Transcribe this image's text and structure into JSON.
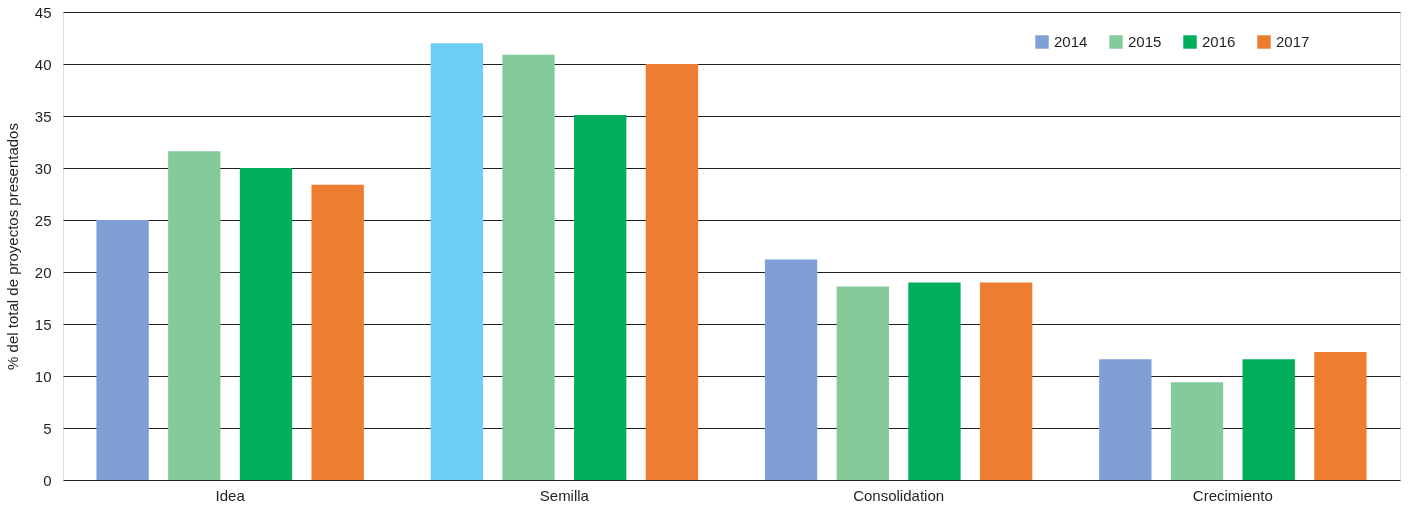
{
  "chart_data": {
    "type": "bar",
    "ylabel": "% del total de proyectos presentados",
    "categories": [
      "Idea",
      "Semilla",
      "Consolidation",
      "Crecimiento"
    ],
    "series": [
      {
        "name": "2014",
        "color": "#7f9fd5",
        "colors": [
          "#7f9fd5",
          "#6dcff6",
          "#7f9fd5",
          "#7f9fd5"
        ],
        "values": [
          25,
          42,
          21.2,
          11.6
        ]
      },
      {
        "name": "2015",
        "color": "#84ca9a",
        "values": [
          31.6,
          40.9,
          18.6,
          9.4
        ]
      },
      {
        "name": "2016",
        "color": "#00ae5c",
        "values": [
          30,
          35.1,
          19,
          11.6
        ]
      },
      {
        "name": "2017",
        "color": "#ed7d31",
        "values": [
          28.4,
          40,
          19,
          12.3
        ]
      }
    ],
    "ylim": [
      0,
      45
    ],
    "yticks": [
      0,
      5,
      10,
      15,
      20,
      25,
      30,
      35,
      40,
      45
    ],
    "grid": "y",
    "legend": "top right"
  }
}
